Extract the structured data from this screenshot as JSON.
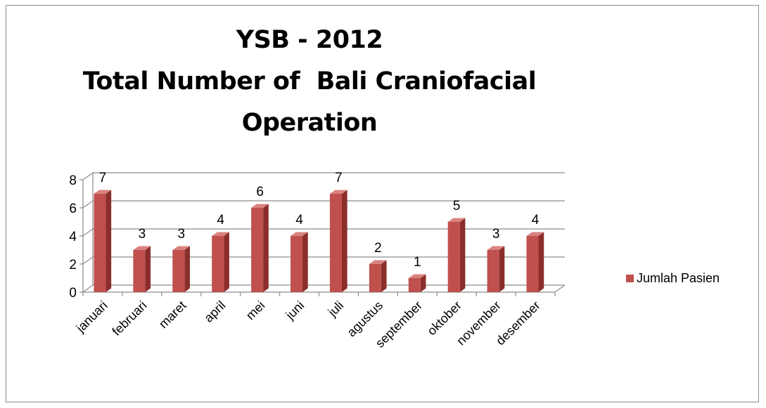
{
  "chart_data": {
    "type": "bar",
    "title_lines": [
      "YSB - 2012",
      "Total Number of  Bali Craniofacial",
      "Operation"
    ],
    "categories": [
      "januari",
      "februari",
      "maret",
      "april",
      "mei",
      "juni",
      "juli",
      "agustus",
      "september",
      "oktober",
      "november",
      "desember"
    ],
    "series": [
      {
        "name": "Jumlah Pasien",
        "values": [
          7,
          3,
          3,
          4,
          6,
          4,
          7,
          2,
          1,
          5,
          3,
          4
        ]
      }
    ],
    "yticks": [
      "0",
      "2",
      "4",
      "6",
      "8"
    ],
    "ylim": [
      0,
      8
    ],
    "grid": true,
    "legend_position": "right",
    "style": "3d-column",
    "colors": {
      "bar_front": "#c0504d",
      "bar_side": "#8b2e2b",
      "bar_top": "#d9827f",
      "gridline": "#8c8c8c",
      "legend": "#c0504d"
    }
  }
}
